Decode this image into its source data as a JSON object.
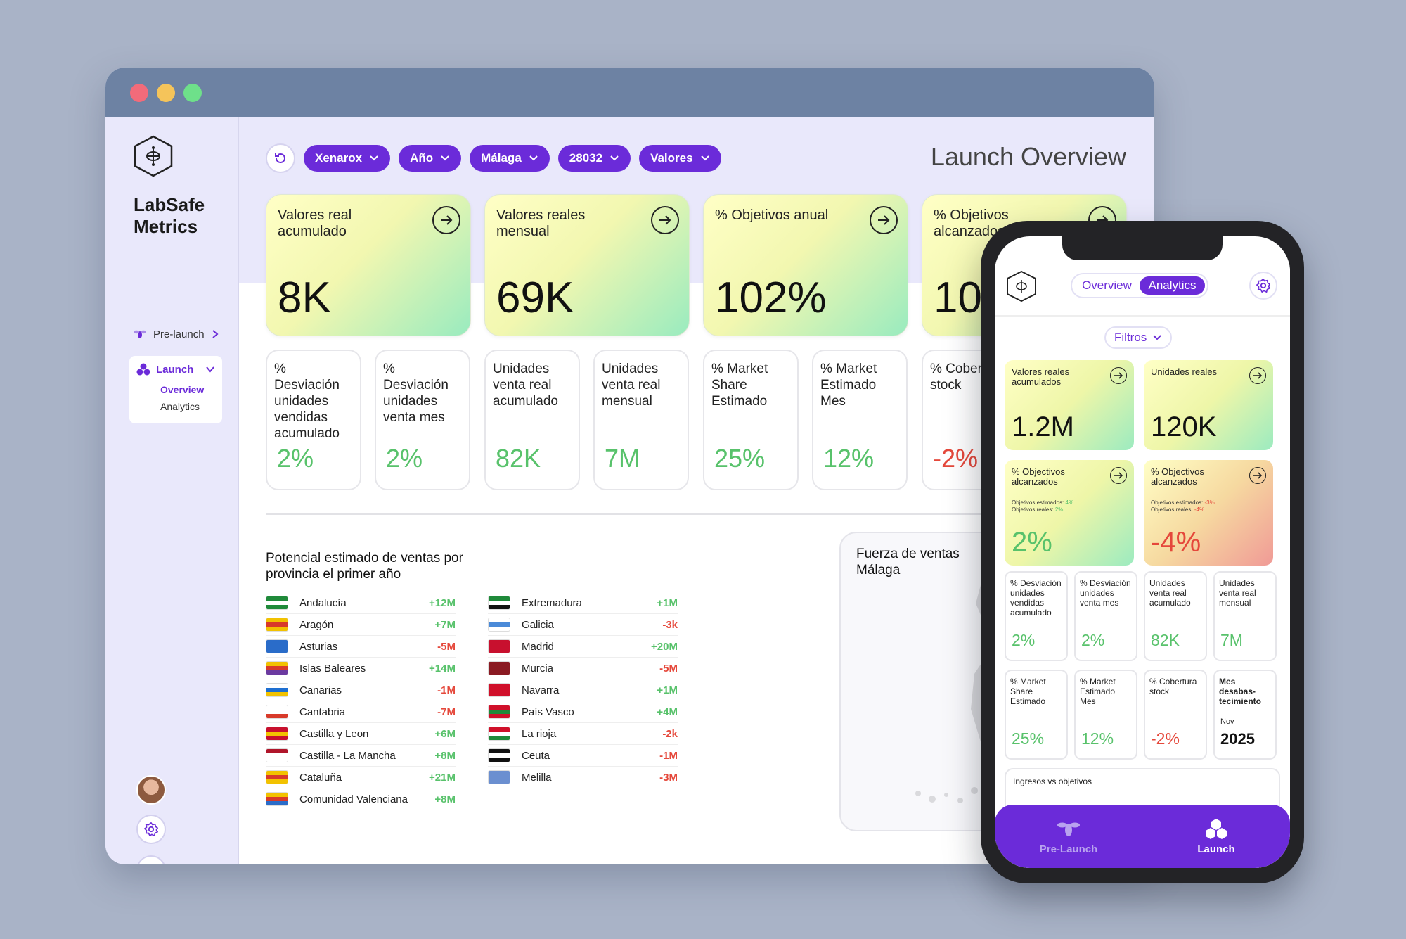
{
  "sidebar": {
    "brand_line1": "LabSafe",
    "brand_line2": "Metrics",
    "prelaunch_label": "Pre-launch",
    "launch_label": "Launch",
    "overview_label": "Overview",
    "analytics_label": "Analytics"
  },
  "toolbar": {
    "filters": [
      "Xenarox",
      "Año",
      "Málaga",
      "28032",
      "Valores"
    ],
    "title": "Launch Overview"
  },
  "kpis": [
    {
      "label": "Valores real acumulado",
      "value": "8K"
    },
    {
      "label": "Valores reales mensual",
      "value": "69K"
    },
    {
      "label": "% Objetivos anual",
      "value": "102%"
    },
    {
      "label": "% Objetivos alcanzados",
      "value": "10"
    }
  ],
  "small_cards": [
    {
      "label": "% Desviación unidades vendidas acumulado",
      "value": "2%"
    },
    {
      "label": "% Desviación unidades venta mes",
      "value": "2%"
    },
    {
      "label": "Unidades venta real acumulado",
      "value": "82K"
    },
    {
      "label": "Unidades venta real mensual",
      "value": "7M"
    },
    {
      "label": "% Market Share Estimado",
      "value": "25%"
    },
    {
      "label": "% Market Estimado Mes",
      "value": "12%"
    },
    {
      "label": "% Cobertu stock",
      "value": "-2%"
    }
  ],
  "provinces_title": "Potencial estimado de ventas por provincia el primer año",
  "provinces_left": [
    {
      "name": "Andalucía",
      "value": "+12M",
      "flag": [
        "#1f8a3a",
        "#ffffff",
        "#1f8a3a"
      ]
    },
    {
      "name": "Aragón",
      "value": "+7M",
      "flag": [
        "#f2c200",
        "#d83a2a",
        "#f2c200"
      ]
    },
    {
      "name": "Asturias",
      "value": "-5M",
      "flag": [
        "#2a6cc9",
        "#2a6cc9",
        "#2a6cc9"
      ]
    },
    {
      "name": "Islas Baleares",
      "value": "+14M",
      "flag": [
        "#f2c200",
        "#d83a2a",
        "#6b3aa0"
      ]
    },
    {
      "name": "Canarias",
      "value": "-1M",
      "flag": [
        "#ffffff",
        "#1e6fd1",
        "#f2c200"
      ]
    },
    {
      "name": "Cantabria",
      "value": "-7M",
      "flag": [
        "#ffffff",
        "#ffffff",
        "#d83a2a"
      ]
    },
    {
      "name": "Castilla y Leon",
      "value": "+6M",
      "flag": [
        "#c8102e",
        "#f2c200",
        "#c8102e"
      ]
    },
    {
      "name": "Castilla - La Mancha",
      "value": "+8M",
      "flag": [
        "#b0152a",
        "#ffffff",
        "#ffffff"
      ]
    },
    {
      "name": "Cataluña",
      "value": "+21M",
      "flag": [
        "#f2c200",
        "#d83a2a",
        "#f2c200"
      ]
    },
    {
      "name": "Comunidad Valenciana",
      "value": "+8M",
      "flag": [
        "#f2c200",
        "#d83a2a",
        "#2a6cc9"
      ]
    }
  ],
  "provinces_right": [
    {
      "name": "Extremadura",
      "value": "+1M",
      "flag": [
        "#1f8a3a",
        "#ffffff",
        "#111111"
      ]
    },
    {
      "name": "Galicia",
      "value": "-3k",
      "flag": [
        "#ffffff",
        "#4a8ad8",
        "#ffffff"
      ]
    },
    {
      "name": "Madrid",
      "value": "+20M",
      "flag": [
        "#c8102e",
        "#c8102e",
        "#c8102e"
      ]
    },
    {
      "name": "Murcia",
      "value": "-5M",
      "flag": [
        "#8a1a22",
        "#8a1a22",
        "#8a1a22"
      ]
    },
    {
      "name": "Navarra",
      "value": "+1M",
      "flag": [
        "#d0102a",
        "#d0102a",
        "#d0102a"
      ]
    },
    {
      "name": "País Vasco",
      "value": "+4M",
      "flag": [
        "#d0102a",
        "#1f8a3a",
        "#d0102a"
      ]
    },
    {
      "name": "La rioja",
      "value": "-2k",
      "flag": [
        "#d0102a",
        "#ffffff",
        "#1f8a3a"
      ]
    },
    {
      "name": "Ceuta",
      "value": "-1M",
      "flag": [
        "#111111",
        "#ffffff",
        "#111111"
      ]
    },
    {
      "name": "Melilla",
      "value": "-3M",
      "flag": [
        "#6b8fd0",
        "#6b8fd0",
        "#6b8fd0"
      ]
    }
  ],
  "map_title": "Fuerza de ventas Málaga",
  "phone": {
    "toggle_overview": "Overview",
    "toggle_analytics": "Analytics",
    "filter_label": "Filtros",
    "kpis": [
      {
        "label": "Valores reales acumulados",
        "value": "1.2M"
      },
      {
        "label": "Unidades reales",
        "value": "120K"
      },
      {
        "label": "% Objectivos alcanzados",
        "value": "2%",
        "mini1": "Objetivos estimados:",
        "mini1v": "4%",
        "mini2": "Objetivos reales:",
        "mini2v": "2%"
      },
      {
        "label": "% Objectivos alcanzados",
        "value": "-4%",
        "mini1": "Objetivos estimados:",
        "mini1v": "-3%",
        "mini2": "Objetivos reales:",
        "mini2v": "-4%"
      }
    ],
    "small_cards": [
      {
        "label": "% Desviación unidades vendidas acumulado",
        "value": "2%"
      },
      {
        "label": "% Desviación unidades venta mes",
        "value": "2%"
      },
      {
        "label": "Unidades venta real acumulado",
        "value": "82K"
      },
      {
        "label": "Unidades venta real mensual",
        "value": "7M"
      },
      {
        "label": "% Market Share Estimado",
        "value": "25%"
      },
      {
        "label": "% Market Estimado Mes",
        "value": "12%"
      },
      {
        "label": "% Cobertura stock",
        "value": "-2%"
      },
      {
        "label": "Mes desabas-tecimiento",
        "month": "Nov",
        "value": "2025"
      }
    ],
    "chart_title": "Ingresos vs objetivos",
    "tab_prelaunch": "Pre-Launch",
    "tab_launch": "Launch"
  },
  "colors": {
    "accent": "#6b2bd9",
    "positive": "#58c26b",
    "negative": "#e5483b"
  }
}
